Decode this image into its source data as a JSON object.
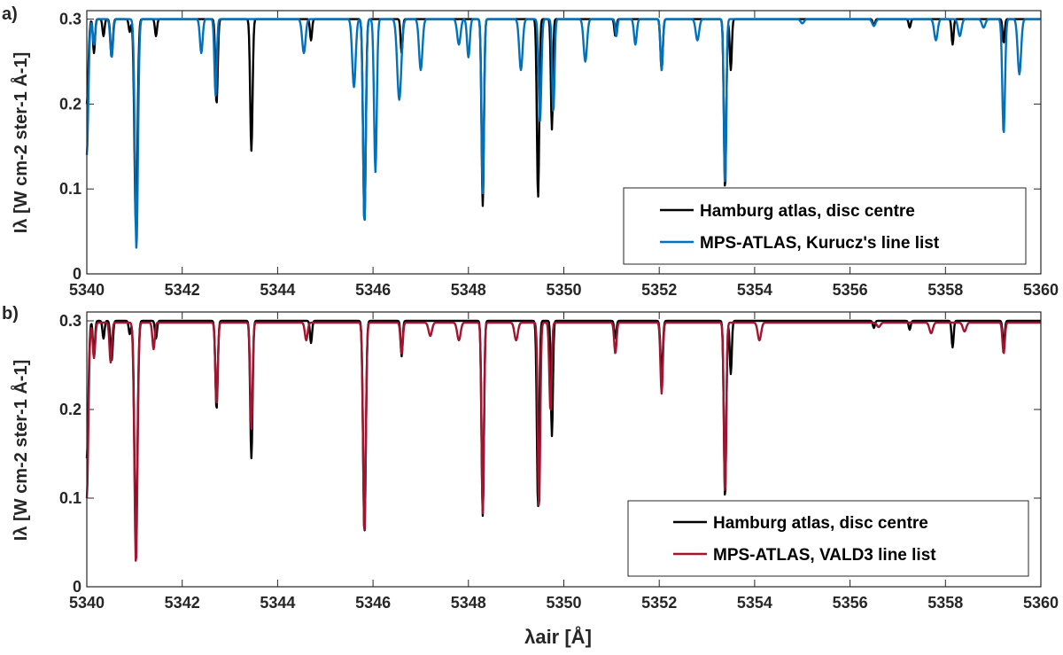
{
  "figure": {
    "xlabel": "λair [Å]"
  },
  "chart_data": [
    {
      "type": "line",
      "panel_label": "a)",
      "xlim": [
        5340,
        5360
      ],
      "ylim": [
        0,
        0.31
      ],
      "xticks": [
        5340,
        5342,
        5344,
        5346,
        5348,
        5350,
        5352,
        5354,
        5356,
        5358,
        5360
      ],
      "yticks": [
        0,
        0.1,
        0.2,
        0.3
      ],
      "ylabel": "Iλ [W cm-2 ster-1 Å-1]",
      "legend_position": "bottom-right",
      "series": [
        {
          "name": "Hamburg atlas, disc centre",
          "color": "#000000",
          "continuum": 0.3,
          "start": [
            5340.0,
            0.2
          ],
          "lines": [
            [
              5340.15,
              0.04,
              0.03
            ],
            [
              5340.35,
              0.02,
              0.03
            ],
            [
              5340.52,
              0.045,
              0.035
            ],
            [
              5340.9,
              0.015,
              0.03
            ],
            [
              5341.03,
              0.245,
              0.045
            ],
            [
              5341.45,
              0.02,
              0.03
            ],
            [
              5342.72,
              0.1,
              0.035
            ],
            [
              5343.45,
              0.155,
              0.035
            ],
            [
              5344.7,
              0.025,
              0.03
            ],
            [
              5345.82,
              0.24,
              0.04
            ],
            [
              5346.6,
              0.04,
              0.03
            ],
            [
              5348.3,
              0.22,
              0.035
            ],
            [
              5349.46,
              0.21,
              0.035
            ],
            [
              5349.75,
              0.13,
              0.03
            ],
            [
              5351.08,
              0.02,
              0.03
            ],
            [
              5352.05,
              0.06,
              0.035
            ],
            [
              5353.38,
              0.2,
              0.035
            ],
            [
              5353.5,
              0.06,
              0.03
            ],
            [
              5356.5,
              0.008,
              0.03
            ],
            [
              5357.25,
              0.01,
              0.03
            ],
            [
              5358.15,
              0.03,
              0.03
            ],
            [
              5359.22,
              0.028,
              0.03
            ]
          ]
        },
        {
          "name": "MPS-ATLAS, Kurucz's line list",
          "color": "#0072BD",
          "continuum": 0.3,
          "start": [
            5340.0,
            0.14
          ],
          "lines": [
            [
              5340.15,
              0.03,
              0.035
            ],
            [
              5340.52,
              0.045,
              0.04
            ],
            [
              5341.04,
              0.27,
              0.045
            ],
            [
              5342.4,
              0.04,
              0.04
            ],
            [
              5342.7,
              0.09,
              0.035
            ],
            [
              5344.55,
              0.04,
              0.05
            ],
            [
              5345.6,
              0.08,
              0.05
            ],
            [
              5345.82,
              0.24,
              0.04
            ],
            [
              5346.05,
              0.18,
              0.04
            ],
            [
              5346.55,
              0.095,
              0.06
            ],
            [
              5347.0,
              0.06,
              0.05
            ],
            [
              5347.8,
              0.03,
              0.05
            ],
            [
              5348.0,
              0.045,
              0.04
            ],
            [
              5348.3,
              0.205,
              0.035
            ],
            [
              5349.1,
              0.06,
              0.05
            ],
            [
              5349.5,
              0.12,
              0.04
            ],
            [
              5349.78,
              0.11,
              0.035
            ],
            [
              5350.45,
              0.05,
              0.05
            ],
            [
              5351.1,
              0.02,
              0.03
            ],
            [
              5351.5,
              0.03,
              0.04
            ],
            [
              5352.05,
              0.06,
              0.035
            ],
            [
              5352.8,
              0.025,
              0.05
            ],
            [
              5353.38,
              0.195,
              0.035
            ],
            [
              5355.0,
              0.005,
              0.05
            ],
            [
              5356.5,
              0.008,
              0.05
            ],
            [
              5357.8,
              0.025,
              0.05
            ],
            [
              5358.3,
              0.02,
              0.05
            ],
            [
              5358.8,
              0.01,
              0.05
            ],
            [
              5359.22,
              0.135,
              0.04
            ],
            [
              5359.55,
              0.065,
              0.05
            ]
          ]
        }
      ]
    },
    {
      "type": "line",
      "panel_label": "b)",
      "xlim": [
        5340,
        5360
      ],
      "ylim": [
        0,
        0.31
      ],
      "xticks": [
        5340,
        5342,
        5344,
        5346,
        5348,
        5350,
        5352,
        5354,
        5356,
        5358,
        5360
      ],
      "yticks": [
        0,
        0.1,
        0.2,
        0.3
      ],
      "ylabel": "Iλ [W cm-2 ster-1 Å-1]",
      "legend_position": "bottom-right",
      "series": [
        {
          "name": "Hamburg atlas, disc centre",
          "color": "#000000",
          "continuum": 0.3,
          "start": [
            5340.0,
            0.145
          ],
          "lines": [
            [
              5340.15,
              0.04,
              0.03
            ],
            [
              5340.35,
              0.02,
              0.03
            ],
            [
              5340.52,
              0.045,
              0.035
            ],
            [
              5340.9,
              0.015,
              0.03
            ],
            [
              5341.03,
              0.245,
              0.045
            ],
            [
              5341.45,
              0.02,
              0.03
            ],
            [
              5342.72,
              0.1,
              0.035
            ],
            [
              5343.45,
              0.155,
              0.035
            ],
            [
              5344.7,
              0.025,
              0.03
            ],
            [
              5345.82,
              0.24,
              0.04
            ],
            [
              5346.6,
              0.04,
              0.03
            ],
            [
              5348.3,
              0.22,
              0.035
            ],
            [
              5349.46,
              0.21,
              0.035
            ],
            [
              5349.75,
              0.13,
              0.03
            ],
            [
              5351.08,
              0.02,
              0.03
            ],
            [
              5352.05,
              0.06,
              0.035
            ],
            [
              5353.38,
              0.2,
              0.035
            ],
            [
              5353.5,
              0.06,
              0.03
            ],
            [
              5356.5,
              0.008,
              0.03
            ],
            [
              5357.25,
              0.01,
              0.03
            ],
            [
              5358.15,
              0.03,
              0.03
            ],
            [
              5359.22,
              0.028,
              0.03
            ]
          ]
        },
        {
          "name": "MPS-ATLAS, VALD3 line list",
          "color": "#A2142F",
          "continuum": 0.298,
          "start": [
            5340.0,
            0.1
          ],
          "lines": [
            [
              5340.15,
              0.04,
              0.035
            ],
            [
              5340.5,
              0.045,
              0.035
            ],
            [
              5341.03,
              0.272,
              0.045
            ],
            [
              5341.4,
              0.03,
              0.035
            ],
            [
              5342.72,
              0.092,
              0.035
            ],
            [
              5343.45,
              0.12,
              0.035
            ],
            [
              5344.6,
              0.02,
              0.04
            ],
            [
              5345.82,
              0.237,
              0.04
            ],
            [
              5346.6,
              0.035,
              0.035
            ],
            [
              5347.2,
              0.015,
              0.05
            ],
            [
              5347.8,
              0.02,
              0.05
            ],
            [
              5348.3,
              0.215,
              0.035
            ],
            [
              5349.0,
              0.02,
              0.05
            ],
            [
              5349.48,
              0.21,
              0.035
            ],
            [
              5349.72,
              0.1,
              0.035
            ],
            [
              5351.08,
              0.035,
              0.035
            ],
            [
              5352.05,
              0.08,
              0.035
            ],
            [
              5353.38,
              0.193,
              0.035
            ],
            [
              5354.1,
              0.02,
              0.05
            ],
            [
              5356.6,
              0.005,
              0.05
            ],
            [
              5357.7,
              0.012,
              0.05
            ],
            [
              5358.4,
              0.01,
              0.05
            ],
            [
              5359.22,
              0.035,
              0.035
            ]
          ]
        }
      ]
    }
  ]
}
